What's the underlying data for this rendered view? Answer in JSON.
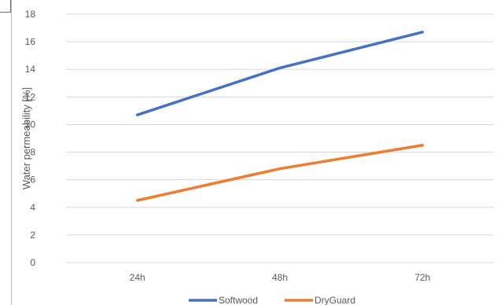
{
  "chart_data": {
    "type": "line",
    "categories": [
      "24h",
      "48h",
      "72h"
    ],
    "series": [
      {
        "name": "Softwood",
        "values": [
          10.7,
          14.1,
          16.7
        ],
        "color": "#4472C4"
      },
      {
        "name": "DryGuard",
        "values": [
          4.5,
          6.8,
          8.5
        ],
        "color": "#ED7D31"
      }
    ],
    "ylabel": "Water permeability [%]",
    "xlabel": "",
    "ylim": [
      0,
      18
    ],
    "yticks": [
      0,
      2,
      4,
      6,
      8,
      10,
      12,
      14,
      16,
      18
    ],
    "grid": true,
    "legend": "bottom"
  }
}
